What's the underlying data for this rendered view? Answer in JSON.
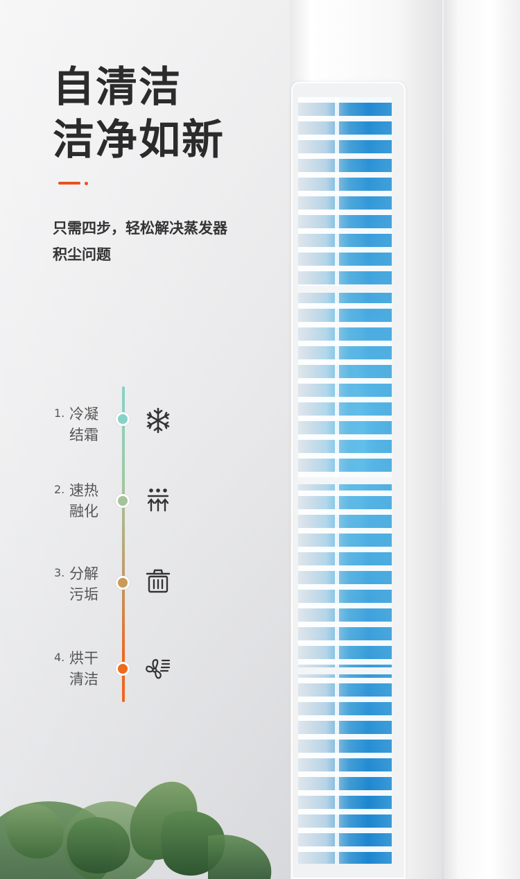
{
  "headline": {
    "line1": "自清洁",
    "line2": "洁净如新"
  },
  "description": {
    "line1": "只需四步，轻松解决蒸发器",
    "line2": "积尘问题"
  },
  "accent_color": "#e8521f",
  "steps": [
    {
      "number": "1.",
      "label_line1": "冷凝",
      "label_line2": "结霜",
      "icon": "snowflake-icon",
      "node_color": "#86d2c8"
    },
    {
      "number": "2.",
      "label_line1": "速热",
      "label_line2": "融化",
      "icon": "heat-rising-icon",
      "node_color": "#a6c29b"
    },
    {
      "number": "3.",
      "label_line1": "分解",
      "label_line2": "污垢",
      "icon": "trash-bin-icon",
      "node_color": "#c99a5a"
    },
    {
      "number": "4.",
      "label_line1": "烘干",
      "label_line2": "清洁",
      "icon": "fan-dry-icon",
      "node_color": "#ee6a1c"
    }
  ]
}
